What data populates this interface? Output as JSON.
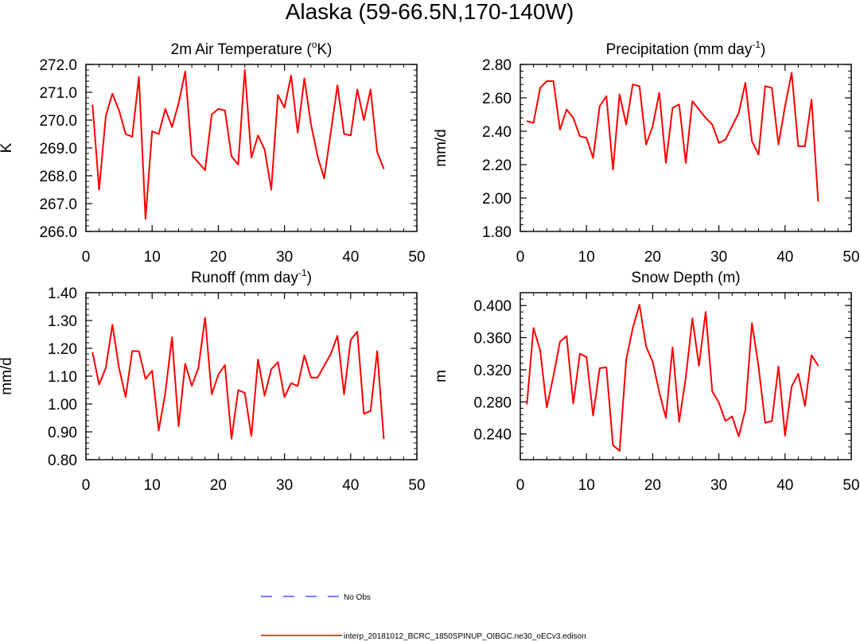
{
  "page_title": "Alaska (59-66.5N,170-140W)",
  "legend": [
    {
      "label": "No Obs",
      "color": "#4455ff",
      "style": "dashed"
    },
    {
      "label": "interp_20181012_BCRC_1850SPINUP_OIBGC.ne30_oECv3.edison",
      "color": "#ff0000",
      "style": "solid"
    }
  ],
  "chart_data": [
    {
      "type": "line",
      "title": "2m Air Temperature (",
      "title_sup": "o",
      "title_tail": "K)",
      "ylabel": "K",
      "xlabel": "",
      "xlim": [
        0,
        50
      ],
      "ylim": [
        266.0,
        272.0
      ],
      "x_ticks": [
        "0",
        "10",
        "20",
        "30",
        "40",
        "50"
      ],
      "y_ticks": [
        "266.0",
        "267.0",
        "268.0",
        "269.0",
        "270.0",
        "271.0",
        "272.0"
      ],
      "series": [
        {
          "color": "#ff0000",
          "x": [
            1,
            2,
            3,
            4,
            5,
            6,
            7,
            8,
            9,
            10,
            11,
            12,
            13,
            14,
            15,
            16,
            18,
            19,
            20,
            21,
            22,
            23,
            24,
            25,
            26,
            27,
            28,
            29,
            30,
            31,
            32,
            33,
            34,
            35,
            36,
            38,
            39,
            40,
            41,
            42,
            43,
            44,
            45
          ],
          "values": [
            270.55,
            267.5,
            270.15,
            270.95,
            270.35,
            269.5,
            269.4,
            271.55,
            266.45,
            269.6,
            269.5,
            270.4,
            269.75,
            270.6,
            271.75,
            268.75,
            268.2,
            270.2,
            270.4,
            270.35,
            268.7,
            268.4,
            271.8,
            268.65,
            269.45,
            268.95,
            267.5,
            270.9,
            270.45,
            271.6,
            269.55,
            271.5,
            269.85,
            268.7,
            267.9,
            271.25,
            269.5,
            269.45,
            271.1,
            270.0,
            271.1,
            268.85,
            268.25
          ]
        }
      ]
    },
    {
      "type": "line",
      "title": "Precipitation (mm day",
      "title_sup": "-1",
      "title_tail": ")",
      "ylabel": "mm/d",
      "xlabel": "",
      "xlim": [
        0,
        50
      ],
      "ylim": [
        1.8,
        2.8
      ],
      "x_ticks": [
        "0",
        "10",
        "20",
        "30",
        "40",
        "50"
      ],
      "y_ticks": [
        "1.80",
        "2.00",
        "2.20",
        "2.40",
        "2.60",
        "2.80"
      ],
      "series": [
        {
          "color": "#ff0000",
          "x": [
            1,
            2,
            3,
            4,
            5,
            6,
            7,
            8,
            9,
            10,
            11,
            12,
            13,
            14,
            15,
            16,
            17,
            18,
            19,
            20,
            21,
            22,
            23,
            24,
            25,
            26,
            28,
            29,
            30,
            31,
            33,
            34,
            35,
            36,
            37,
            38,
            39,
            40,
            41,
            42,
            43,
            44,
            45
          ],
          "values": [
            2.46,
            2.45,
            2.66,
            2.7,
            2.7,
            2.41,
            2.53,
            2.48,
            2.37,
            2.36,
            2.24,
            2.55,
            2.61,
            2.17,
            2.62,
            2.44,
            2.68,
            2.67,
            2.32,
            2.43,
            2.63,
            2.21,
            2.54,
            2.56,
            2.21,
            2.58,
            2.48,
            2.44,
            2.33,
            2.35,
            2.51,
            2.69,
            2.34,
            2.26,
            2.67,
            2.66,
            2.32,
            2.55,
            2.75,
            2.31,
            2.31,
            2.59,
            1.98
          ]
        }
      ]
    },
    {
      "type": "line",
      "title": "Runoff (mm day",
      "title_sup": "-1",
      "title_tail": ")",
      "ylabel": "mm/d",
      "xlabel": "",
      "xlim": [
        0,
        50
      ],
      "ylim": [
        0.8,
        1.4
      ],
      "x_ticks": [
        "0",
        "10",
        "20",
        "30",
        "40",
        "50"
      ],
      "y_ticks": [
        "0.80",
        "0.90",
        "1.00",
        "1.10",
        "1.20",
        "1.30",
        "1.40"
      ],
      "series": [
        {
          "color": "#ff0000",
          "x": [
            1,
            2,
            3,
            4,
            5,
            6,
            7,
            8,
            9,
            10,
            11,
            12,
            13,
            14,
            15,
            16,
            17,
            18,
            19,
            20,
            21,
            22,
            23,
            24,
            25,
            26,
            27,
            28,
            29,
            30,
            31,
            32,
            33,
            34,
            35,
            37,
            38,
            39,
            40,
            41,
            42,
            43,
            44,
            45
          ],
          "values": [
            1.185,
            1.07,
            1.13,
            1.285,
            1.13,
            1.025,
            1.19,
            1.19,
            1.09,
            1.12,
            0.905,
            1.04,
            1.24,
            0.92,
            1.145,
            1.065,
            1.13,
            1.31,
            1.035,
            1.105,
            1.14,
            0.875,
            1.05,
            1.04,
            0.885,
            1.16,
            1.03,
            1.125,
            1.15,
            1.025,
            1.075,
            1.065,
            1.175,
            1.095,
            1.095,
            1.18,
            1.245,
            1.035,
            1.23,
            1.26,
            0.965,
            0.975,
            1.19,
            0.875
          ]
        }
      ]
    },
    {
      "type": "line",
      "title": "Snow Depth (m)",
      "title_sup": "",
      "title_tail": "",
      "ylabel": "m",
      "xlabel": "",
      "xlim": [
        0,
        50
      ],
      "ylim": [
        0.208,
        0.416
      ],
      "x_ticks": [
        "0",
        "10",
        "20",
        "30",
        "40",
        "50"
      ],
      "y_ticks": [
        "0.240",
        "0.280",
        "0.320",
        "0.360",
        "0.400"
      ],
      "series": [
        {
          "color": "#ff0000",
          "x": [
            1,
            2,
            3,
            4,
            5,
            6,
            7,
            8,
            9,
            10,
            11,
            12,
            13,
            14,
            15,
            16,
            17,
            18,
            19,
            20,
            21,
            22,
            23,
            24,
            25,
            26,
            27,
            28,
            29,
            30,
            31,
            32,
            33,
            34,
            35,
            36,
            37,
            38,
            39,
            40,
            41,
            42,
            43,
            44,
            45
          ],
          "values": [
            0.277,
            0.372,
            0.344,
            0.273,
            0.312,
            0.355,
            0.362,
            0.278,
            0.34,
            0.336,
            0.263,
            0.322,
            0.323,
            0.226,
            0.219,
            0.332,
            0.372,
            0.401,
            0.349,
            0.33,
            0.292,
            0.26,
            0.348,
            0.255,
            0.31,
            0.384,
            0.325,
            0.392,
            0.293,
            0.279,
            0.256,
            0.262,
            0.237,
            0.27,
            0.378,
            0.324,
            0.254,
            0.256,
            0.324,
            0.238,
            0.299,
            0.315,
            0.275,
            0.338,
            0.325
          ]
        }
      ]
    }
  ]
}
